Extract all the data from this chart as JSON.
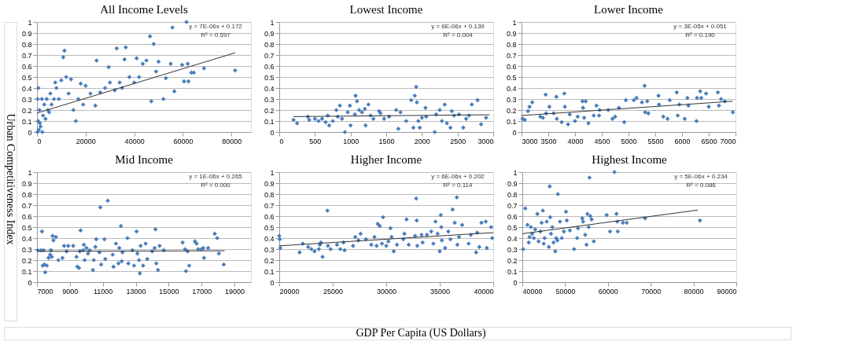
{
  "chart_data": [
    {
      "type": "scatter",
      "title": "All Income Levels",
      "ylabel": "Urban Competitiveness Index",
      "grid": "y",
      "xlim": [
        0,
        88000
      ],
      "xticks": [
        0,
        20000,
        40000,
        60000,
        80000
      ],
      "ylim": [
        0,
        1
      ],
      "yticks": [
        0,
        0.1,
        0.2,
        0.3,
        0.4,
        0.5,
        0.6,
        0.7,
        0.8,
        0.9,
        1
      ],
      "annotations": [
        "y = 7E-06x + 0.172",
        "R² = 0.597"
      ],
      "series": [
        {
          "marker": "diamond",
          "color": "#4a7ebb",
          "x": [
            200,
            500,
            800,
            1000,
            1200,
            1500,
            2000,
            2200,
            2500,
            300,
            600,
            3000,
            3500,
            4000,
            4500,
            5000,
            5500,
            6000,
            7000,
            7500,
            8000,
            9000,
            10000,
            10800,
            11300,
            12000,
            13000,
            14000,
            15000,
            16000,
            17000,
            18000,
            19000,
            20000,
            22000,
            24000,
            24500,
            26000,
            28000,
            29500,
            30000,
            32000,
            32800,
            34000,
            35000,
            36000,
            36500,
            38000,
            40000,
            41000,
            42000,
            43500,
            45000,
            46500,
            47000,
            48000,
            49000,
            50000,
            52000,
            53000,
            55000,
            55700,
            56500,
            59700,
            60500,
            61500,
            62000,
            62300,
            63500,
            64500,
            68700,
            81500
          ],
          "values": [
            0.0,
            0.1,
            0.02,
            0.2,
            0.08,
            0.05,
            0.3,
            0.0,
            0.15,
            0.3,
            0.4,
            0.25,
            0.12,
            0.3,
            0.2,
            0.18,
            0.35,
            0.25,
            0.3,
            0.45,
            0.4,
            0.3,
            0.47,
            0.68,
            0.74,
            0.5,
            0.35,
            0.48,
            0.2,
            0.1,
            0.3,
            0.44,
            0.25,
            0.42,
            0.35,
            0.24,
            0.65,
            0.36,
            0.4,
            0.59,
            0.45,
            0.38,
            0.76,
            0.45,
            0.4,
            0.66,
            0.77,
            0.5,
            0.45,
            0.67,
            0.5,
            0.62,
            0.65,
            0.87,
            0.28,
            0.8,
            0.55,
            0.64,
            0.3,
            0.49,
            0.62,
            0.95,
            0.37,
            0.61,
            0.46,
            1.0,
            0.62,
            0.46,
            0.54,
            0.54,
            0.58,
            0.56
          ]
        },
        {
          "type": "line",
          "color": "#333333",
          "x": [
            0,
            81500
          ],
          "values": [
            0.172,
            0.72
          ]
        }
      ]
    },
    {
      "type": "scatter",
      "title": "Lowest Income",
      "grid": "y",
      "xlim": [
        0,
        3000
      ],
      "xticks": [
        0,
        500,
        1000,
        1500,
        2000,
        2500,
        3000
      ],
      "ylim": [
        0,
        1
      ],
      "yticks": [
        0,
        0.1,
        0.2,
        0.3,
        0.4,
        0.5,
        0.6,
        0.7,
        0.8,
        0.9,
        1
      ],
      "annotations": [
        "y = 6E-06x + 0.139",
        "R² = 0.004"
      ],
      "series": [
        {
          "marker": "diamond",
          "color": "#4a7ebb",
          "x": [
            200,
            250,
            400,
            420,
            500,
            550,
            600,
            650,
            680,
            700,
            750,
            800,
            820,
            850,
            880,
            920,
            960,
            990,
            1000,
            1060,
            1070,
            1090,
            1120,
            1160,
            1200,
            1210,
            1250,
            1280,
            1320,
            1400,
            1420,
            1470,
            1540,
            1640,
            1670,
            1700,
            1780,
            1850,
            1880,
            1900,
            1920,
            1930,
            1950,
            1970,
            2000,
            2050,
            2060,
            2180,
            2200,
            2250,
            2280,
            2320,
            2350,
            2400,
            2420,
            2450,
            2520,
            2580,
            2620,
            2660,
            2700,
            2780,
            2830,
            2900
          ],
          "values": [
            0.11,
            0.08,
            0.14,
            0.11,
            0.12,
            0.1,
            0.12,
            0.09,
            0.15,
            0.06,
            0.1,
            0.2,
            0.14,
            0.24,
            0.12,
            0.0,
            0.18,
            0.24,
            0.06,
            0.16,
            0.33,
            0.28,
            0.2,
            0.18,
            0.21,
            0.06,
            0.25,
            0.15,
            0.12,
            0.19,
            0.17,
            0.12,
            0.14,
            0.2,
            0.03,
            0.18,
            0.1,
            0.29,
            0.04,
            0.33,
            0.41,
            0.27,
            0.1,
            0.04,
            0.13,
            0.22,
            0.14,
            0.0,
            0.16,
            0.2,
            0.1,
            0.25,
            0.08,
            0.04,
            0.19,
            0.15,
            0.16,
            0.04,
            0.12,
            0.15,
            0.25,
            0.29,
            0.07,
            0.13
          ]
        },
        {
          "type": "line",
          "color": "#333333",
          "x": [
            200,
            2950
          ],
          "values": [
            0.14,
            0.157
          ]
        }
      ]
    },
    {
      "type": "scatter",
      "title": "Lower Income",
      "grid": "y",
      "xlim": [
        3000,
        7000
      ],
      "xticks": [
        3000,
        3500,
        4000,
        4500,
        5000,
        5500,
        6000,
        6500,
        7000
      ],
      "ylim": [
        0,
        1
      ],
      "yticks": [
        0,
        0.1,
        0.2,
        0.3,
        0.4,
        0.5,
        0.6,
        0.7,
        0.8,
        0.9,
        1
      ],
      "annotations": [
        "y = 3E-05x + 0.051",
        "R² = 0.190"
      ],
      "series": [
        {
          "marker": "diamond",
          "color": "#4a7ebb",
          "x": [
            3020,
            3060,
            3120,
            3150,
            3200,
            3350,
            3400,
            3450,
            3460,
            3520,
            3600,
            3650,
            3660,
            3750,
            3800,
            3810,
            3870,
            3900,
            4000,
            4050,
            4140,
            4150,
            4170,
            4200,
            4250,
            4350,
            4400,
            4450,
            4460,
            4620,
            4700,
            4750,
            4820,
            4920,
            4950,
            5100,
            5150,
            5250,
            5300,
            5310,
            5350,
            5370,
            5560,
            5570,
            5650,
            5730,
            5770,
            5900,
            5920,
            5950,
            6050,
            6100,
            6120,
            6270,
            6280,
            6340,
            6360,
            6450,
            6500,
            6670,
            6690,
            6730,
            6800,
            6950
          ],
          "values": [
            0.12,
            0.11,
            0.19,
            0.23,
            0.27,
            0.14,
            0.13,
            0.34,
            0.17,
            0.23,
            0.17,
            0.32,
            0.12,
            0.09,
            0.35,
            0.23,
            0.07,
            0.16,
            0.1,
            0.14,
            0.28,
            0.22,
            0.13,
            0.28,
            0.08,
            0.15,
            0.24,
            0.15,
            0.2,
            0.2,
            0.12,
            0.14,
            0.22,
            0.09,
            0.29,
            0.29,
            0.31,
            0.27,
            0.42,
            0.18,
            0.28,
            0.17,
            0.33,
            0.25,
            0.14,
            0.12,
            0.29,
            0.36,
            0.15,
            0.25,
            0.12,
            0.31,
            0.24,
            0.1,
            0.31,
            0.37,
            0.31,
            0.35,
            0.23,
            0.36,
            0.24,
            0.3,
            0.28,
            0.18
          ]
        },
        {
          "type": "line",
          "color": "#333333",
          "x": [
            3000,
            6950
          ],
          "values": [
            0.15,
            0.28
          ]
        }
      ]
    },
    {
      "type": "scatter",
      "title": "Mid Income",
      "grid": "y",
      "xlim": [
        7000,
        20000
      ],
      "xticks": [
        7000,
        9000,
        11000,
        13000,
        15000,
        17000,
        19000
      ],
      "ylim": [
        0,
        1
      ],
      "yticks": [
        0,
        0.1,
        0.2,
        0.3,
        0.4,
        0.5,
        0.6,
        0.7,
        0.8,
        0.9,
        1
      ],
      "annotations": [
        "y = 1E-06x + 0.265",
        "R² = 0.000"
      ],
      "series": [
        {
          "marker": "diamond",
          "color": "#4a7ebb",
          "x": [
            7050,
            7250,
            7300,
            7350,
            7400,
            7450,
            7500,
            7600,
            7700,
            7800,
            7850,
            7900,
            7950,
            8000,
            8150,
            8300,
            8550,
            8650,
            8800,
            8900,
            9200,
            9400,
            9450,
            9550,
            9600,
            9650,
            9800,
            9850,
            9900,
            10000,
            10100,
            10200,
            10400,
            10450,
            10550,
            10600,
            10800,
            10850,
            10900,
            11100,
            11150,
            11300,
            11600,
            11650,
            11800,
            11950,
            12000,
            12100,
            12200,
            12150,
            12500,
            12550,
            12800,
            12900,
            13050,
            13100,
            13200,
            13250,
            13300,
            13450,
            13600,
            13700,
            14000,
            14150,
            14200,
            14250,
            14350,
            14450,
            14700,
            15850,
            16000,
            16050,
            16150,
            16250,
            16600,
            16700,
            16800,
            17000,
            17100,
            17150,
            17400,
            17800,
            17950,
            18050,
            18350
          ],
          "values": [
            0.29,
            0.29,
            0.46,
            0.15,
            0.29,
            0.16,
            0.09,
            0.15,
            0.22,
            0.25,
            0.29,
            0.23,
            0.42,
            0.38,
            0.41,
            0.2,
            0.22,
            0.33,
            0.28,
            0.33,
            0.33,
            0.23,
            0.14,
            0.13,
            0.28,
            0.47,
            0.29,
            0.34,
            0.2,
            0.31,
            0.26,
            0.29,
            0.11,
            0.2,
            0.32,
            0.39,
            0.27,
            0.68,
            0.16,
            0.39,
            0.21,
            0.74,
            0.25,
            0.14,
            0.35,
            0.17,
            0.31,
            0.51,
            0.27,
            0.19,
            0.4,
            0.17,
            0.29,
            0.15,
            0.46,
            0.26,
            0.2,
            0.08,
            0.33,
            0.15,
            0.35,
            0.21,
            0.28,
            0.31,
            0.48,
            0.17,
            0.11,
            0.33,
            0.29,
            0.36,
            0.3,
            0.1,
            0.28,
            0.15,
            0.37,
            0.35,
            0.3,
            0.3,
            0.31,
            0.22,
            0.31,
            0.44,
            0.4,
            0.26,
            0.16
          ]
        },
        {
          "type": "line",
          "color": "#333333",
          "x": [
            7000,
            18400
          ],
          "values": [
            0.28,
            0.285
          ]
        }
      ]
    },
    {
      "type": "scatter",
      "title": "Higher Income",
      "xlabel": "GDP Per Capita (US Dollars)",
      "grid": "y",
      "xlim": [
        20000,
        40000
      ],
      "xticks": [
        20000,
        25000,
        30000,
        35000,
        40000
      ],
      "ylim": [
        0,
        1
      ],
      "yticks": [
        0,
        0.1,
        0.2,
        0.3,
        0.4,
        0.5,
        0.6,
        0.7,
        0.8,
        0.9,
        1
      ],
      "annotations": [
        "y = 6E-06x + 0.202",
        "R² = 0.114"
      ],
      "series": [
        {
          "marker": "diamond",
          "color": "#4a7ebb",
          "x": [
            20000,
            20050,
            20100,
            21900,
            22200,
            22700,
            23000,
            23300,
            23700,
            23800,
            23900,
            24050,
            24500,
            24550,
            24800,
            25400,
            25700,
            26000,
            26100,
            26900,
            27100,
            27400,
            27600,
            28100,
            28600,
            28900,
            29100,
            29200,
            29400,
            29600,
            29700,
            30000,
            30200,
            30400,
            30500,
            30700,
            31000,
            31600,
            31700,
            31900,
            32100,
            32700,
            32800,
            32850,
            32900,
            33300,
            33400,
            33800,
            34200,
            34400,
            34600,
            34800,
            35000,
            35100,
            35150,
            35200,
            35500,
            35800,
            36000,
            36200,
            36400,
            36600,
            36650,
            36800,
            37100,
            37700,
            37900,
            38400,
            38500,
            38700,
            38900,
            39300,
            39400,
            39800,
            39900
          ],
          "values": [
            0.42,
            0.39,
            0.31,
            0.27,
            0.35,
            0.32,
            0.3,
            0.28,
            0.3,
            0.34,
            0.36,
            0.23,
            0.65,
            0.33,
            0.3,
            0.34,
            0.3,
            0.36,
            0.29,
            0.33,
            0.41,
            0.38,
            0.44,
            0.39,
            0.34,
            0.41,
            0.33,
            0.53,
            0.51,
            0.35,
            0.59,
            0.33,
            0.37,
            0.49,
            0.41,
            0.28,
            0.34,
            0.39,
            0.44,
            0.57,
            0.34,
            0.42,
            0.76,
            0.56,
            0.33,
            0.43,
            0.36,
            0.43,
            0.46,
            0.35,
            0.55,
            0.44,
            0.28,
            0.61,
            0.5,
            0.38,
            0.31,
            0.46,
            0.39,
            0.66,
            0.54,
            0.77,
            0.34,
            0.41,
            0.52,
            0.35,
            0.43,
            0.27,
            0.45,
            0.32,
            0.54,
            0.55,
            0.31,
            0.5,
            0.4
          ]
        },
        {
          "type": "line",
          "color": "#333333",
          "x": [
            20000,
            40000
          ],
          "values": [
            0.33,
            0.45
          ]
        }
      ]
    },
    {
      "type": "scatter",
      "title": "Highest Income",
      "grid": "y",
      "xlim": [
        40000,
        90000
      ],
      "xticks": [
        40000,
        50000,
        60000,
        70000,
        80000,
        90000
      ],
      "ylim": [
        0,
        1
      ],
      "yticks": [
        0,
        0.1,
        0.2,
        0.3,
        0.4,
        0.5,
        0.6,
        0.7,
        0.8,
        0.9,
        1
      ],
      "annotations": [
        "y = 5E-06x + 0.234",
        "R² = 0.086"
      ],
      "series": [
        {
          "marker": "diamond",
          "color": "#4a7ebb",
          "x": [
            40200,
            40700,
            41200,
            41500,
            41700,
            42000,
            42300,
            42700,
            43000,
            43500,
            43800,
            44200,
            44500,
            44800,
            45000,
            45200,
            45700,
            46200,
            46400,
            46500,
            46700,
            47000,
            47300,
            47700,
            47900,
            48300,
            48200,
            48800,
            49200,
            49700,
            50200,
            50400,
            51100,
            52100,
            52800,
            53000,
            54000,
            54200,
            54700,
            55000,
            55200,
            55500,
            55700,
            55900,
            56200,
            56700,
            59700,
            60500,
            61500,
            62000,
            62200,
            62300,
            63500,
            64400,
            68700,
            81500
          ],
          "values": [
            0.3,
            0.67,
            0.52,
            0.36,
            0.41,
            0.5,
            0.44,
            0.4,
            0.48,
            0.62,
            0.37,
            0.46,
            0.54,
            0.65,
            0.35,
            0.4,
            0.55,
            0.32,
            0.87,
            0.59,
            0.44,
            0.5,
            0.36,
            0.28,
            0.4,
            0.8,
            0.38,
            0.55,
            0.4,
            0.46,
            0.64,
            0.56,
            0.47,
            0.3,
            0.4,
            0.49,
            0.58,
            0.55,
            0.43,
            0.34,
            0.62,
            0.5,
            0.95,
            0.6,
            0.57,
            0.37,
            0.61,
            0.46,
            1.0,
            0.62,
            0.55,
            0.46,
            0.54,
            0.54,
            0.58,
            0.56
          ]
        },
        {
          "type": "line",
          "color": "#333333",
          "x": [
            40000,
            81000
          ],
          "values": [
            0.44,
            0.655
          ]
        }
      ]
    }
  ]
}
